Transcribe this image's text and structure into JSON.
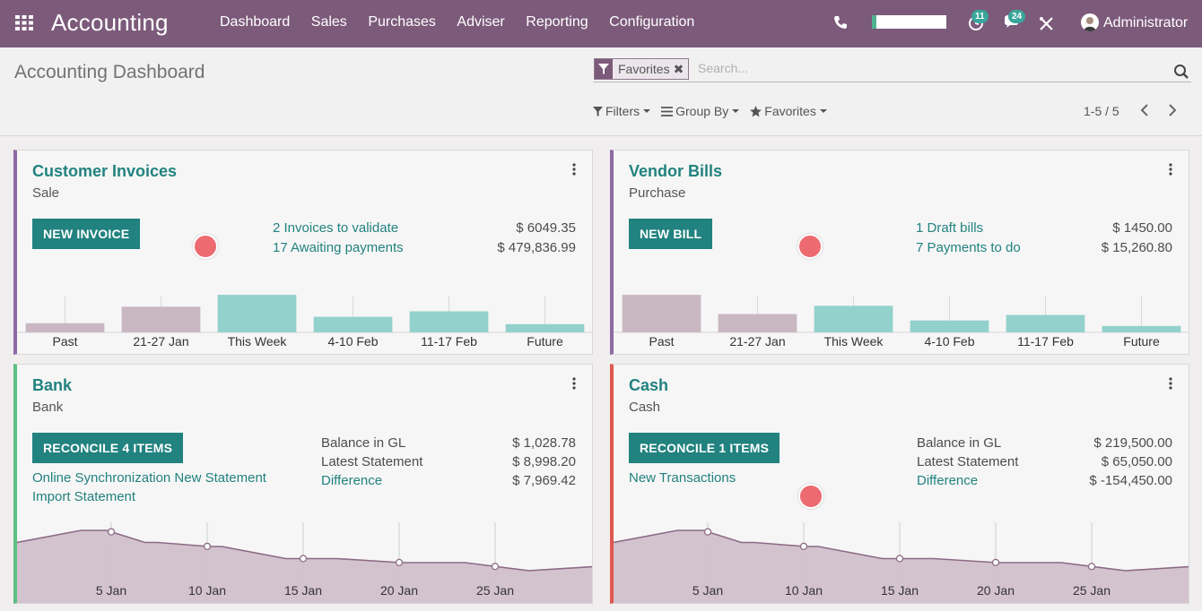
{
  "navbar": {
    "app_title": "Accounting",
    "menu": [
      "Dashboard",
      "Sales",
      "Purchases",
      "Adviser",
      "Reporting",
      "Configuration"
    ],
    "activity_badge": "11",
    "messages_badge": "24",
    "user_name": "Administrator"
  },
  "control_panel": {
    "title": "Accounting Dashboard",
    "facet_label": "Favorites",
    "search_placeholder": "Search...",
    "filters_label": "Filters",
    "group_by_label": "Group By",
    "favorites_label": "Favorites",
    "pager": "1-5 / 5"
  },
  "cards": {
    "customer_invoices": {
      "title": "Customer Invoices",
      "subtitle": "Sale",
      "button": "NEW INVOICE",
      "lines": [
        {
          "label": "2 Invoices to validate",
          "amount": "$ 6049.35"
        },
        {
          "label": "17 Awaiting payments",
          "amount": "$ 479,836.99"
        }
      ]
    },
    "vendor_bills": {
      "title": "Vendor Bills",
      "subtitle": "Purchase",
      "button": "NEW BILL",
      "lines": [
        {
          "label": "1 Draft bills",
          "amount": "$ 1450.00"
        },
        {
          "label": "7 Payments to do",
          "amount": "$ 15,260.80"
        }
      ]
    },
    "bank": {
      "title": "Bank",
      "subtitle": "Bank",
      "button": "RECONCILE 4 ITEMS",
      "links": [
        "Online Synchronization New Statement",
        "Import Statement"
      ],
      "balance": [
        {
          "label": "Balance in GL",
          "amount": "$ 1,028.78"
        },
        {
          "label": "Latest Statement",
          "amount": "$ 8,998.20"
        },
        {
          "label": "Difference",
          "amount": "$ 7,969.42"
        }
      ]
    },
    "cash": {
      "title": "Cash",
      "subtitle": "Cash",
      "button": "RECONCILE 1 ITEMS",
      "links": [
        "New Transactions"
      ],
      "balance": [
        {
          "label": "Balance in GL",
          "amount": "$ 219,500.00"
        },
        {
          "label": "Latest Statement",
          "amount": "$ 65,050.00"
        },
        {
          "label": "Difference",
          "amount": "$ -154,450.00"
        }
      ]
    }
  },
  "chart_data": [
    {
      "type": "bar",
      "card": "Customer Invoices",
      "categories": [
        "Past",
        "21-27 Jan",
        "This Week",
        "4-10 Feb",
        "11-17 Feb",
        "Future"
      ],
      "values": [
        10,
        28,
        41,
        17,
        23,
        9
      ],
      "colors": [
        "#c9b7c2",
        "#c9b7c2",
        "#93d1cc",
        "#93d1cc",
        "#93d1cc",
        "#93d1cc"
      ],
      "ylim": [
        0,
        45
      ]
    },
    {
      "type": "bar",
      "card": "Vendor Bills",
      "categories": [
        "Past",
        "21-27 Jan",
        "This Week",
        "4-10 Feb",
        "11-17 Feb",
        "Future"
      ],
      "values": [
        41,
        20,
        29,
        13,
        19,
        7
      ],
      "colors": [
        "#c9b7c2",
        "#c9b7c2",
        "#93d1cc",
        "#93d1cc",
        "#93d1cc",
        "#93d1cc"
      ],
      "ylim": [
        0,
        45
      ]
    },
    {
      "type": "area",
      "card": "Bank",
      "x_ticks": [
        "5 Jan",
        "10 Jan",
        "15 Jan",
        "20 Jan",
        "25 Jan"
      ],
      "x": [
        0,
        5,
        7,
        10,
        11,
        15,
        16,
        21,
        25,
        30,
        35,
        40,
        45
      ],
      "values": [
        75,
        90,
        90,
        75,
        75,
        70,
        70,
        55,
        55,
        50,
        50,
        40,
        45
      ],
      "ylim": [
        0,
        100
      ]
    },
    {
      "type": "area",
      "card": "Cash",
      "x_ticks": [
        "5 Jan",
        "10 Jan",
        "15 Jan",
        "20 Jan",
        "25 Jan"
      ],
      "x": [
        0,
        5,
        7,
        10,
        11,
        15,
        16,
        21,
        25,
        30,
        35,
        40,
        45
      ],
      "values": [
        75,
        90,
        90,
        75,
        75,
        70,
        70,
        55,
        55,
        50,
        50,
        40,
        45
      ],
      "ylim": [
        0,
        100
      ]
    }
  ]
}
